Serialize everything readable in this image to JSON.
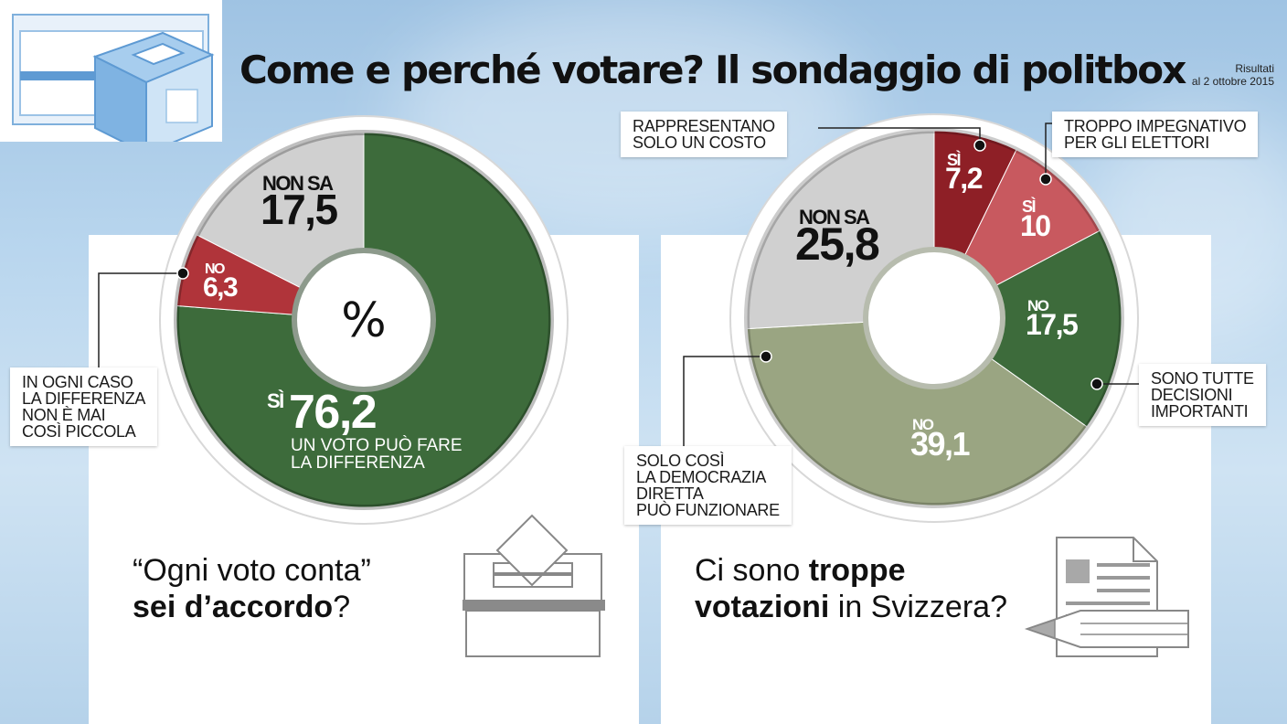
{
  "header": {
    "title": "Come e perché votare? Il sondaggio di politbox",
    "results_label": "Risultati",
    "results_date": "al 2 ottobre 2015"
  },
  "colors": {
    "green_dark": "#3d6b3b",
    "green_olive": "#9aa582",
    "red": "#b0343a",
    "red_dark": "#8e1f26",
    "red_light": "#c8595f",
    "grey": "#d0d0d0"
  },
  "chart_data": [
    {
      "type": "pie",
      "variant": "donut",
      "center_label": "%",
      "slices": [
        {
          "category": "SÌ",
          "value": 76.2,
          "value_label": "76,2",
          "sublabel": "UN VOTO PUÒ FARE\nLA DIFFERENZA",
          "color": "#3d6b3b"
        },
        {
          "category": "NO",
          "value": 6.3,
          "value_label": "6,3",
          "color": "#b0343a"
        },
        {
          "category": "NON SA",
          "value": 17.5,
          "value_label": "17,5",
          "color": "#d0d0d0"
        }
      ],
      "callouts": [
        {
          "text": "IN OGNI CASO\nLA DIFFERENZA\nNON È MAI\nCOSÌ PICCOLA"
        }
      ],
      "question": {
        "line1": "“Ogni voto conta”",
        "line2_bold": "sei d’accordo",
        "line2_rest": "?"
      }
    },
    {
      "type": "pie",
      "variant": "donut",
      "slices": [
        {
          "category": "SÌ",
          "value": 7.2,
          "value_label": "7,2",
          "color": "#8e1f26"
        },
        {
          "category": "SÌ",
          "value": 10,
          "value_label": "10",
          "color": "#c8595f"
        },
        {
          "category": "NO",
          "value": 17.5,
          "value_label": "17,5",
          "color": "#3d6b3b"
        },
        {
          "category": "NO",
          "value": 39.1,
          "value_label": "39,1",
          "color": "#9aa582"
        },
        {
          "category": "NON SA",
          "value": 25.8,
          "value_label": "25,8",
          "color": "#d0d0d0"
        }
      ],
      "callouts": [
        {
          "text": "RAPPRESENTANO\nSOLO UN COSTO"
        },
        {
          "text": "TROPPO IMPEGNATIVO\nPER GLI ELETTORI"
        },
        {
          "text": "SONO TUTTE\nDECISIONI\nIMPORTANTI"
        },
        {
          "text": "SOLO COSÌ\nLA DEMOCRAZIA\nDIRETTA\nPUÒ FUNZIONARE"
        }
      ],
      "question": {
        "line1_pre": "Ci sono ",
        "line1_bold": "troppe",
        "line2_bold": "votazioni",
        "line2_rest": " in Svizzera?"
      }
    }
  ]
}
